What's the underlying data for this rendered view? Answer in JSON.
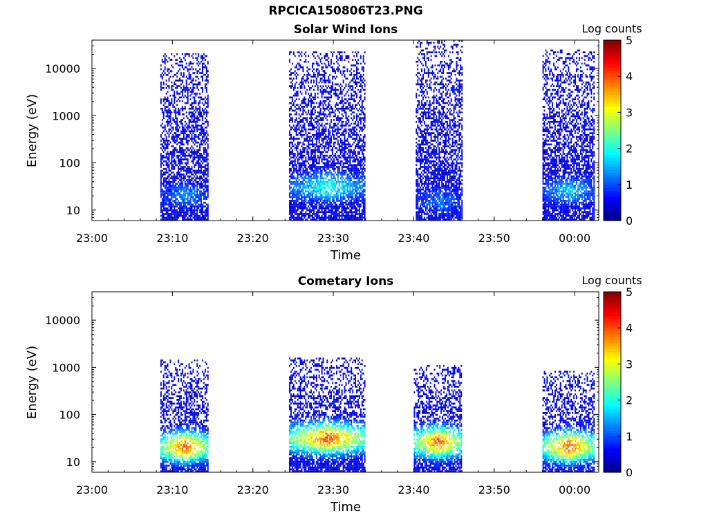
{
  "figure": {
    "title": "RPCICA150806T23.PNG"
  },
  "colorbar": {
    "label": "Log counts",
    "min": 0,
    "max": 5,
    "ticks": [
      "0",
      "1",
      "2",
      "3",
      "4",
      "5"
    ],
    "colormap": "jet",
    "colors": [
      "#00007f",
      "#0000ff",
      "#007fff",
      "#00ffff",
      "#7fff7f",
      "#ffff00",
      "#ff7f00",
      "#ff0000",
      "#7f0000"
    ]
  },
  "chart_data": [
    {
      "type": "heatmap",
      "title": "Solar Wind Ions",
      "xlabel": "Time",
      "ylabel": "Energy (eV)",
      "yscale": "log",
      "ylim": [
        6,
        40000
      ],
      "xlim": [
        "23:00",
        "00:03"
      ],
      "xticks": [
        "23:00",
        "23:10",
        "23:20",
        "23:30",
        "23:40",
        "23:50",
        "00:00"
      ],
      "yticks": [
        "10",
        "100",
        "1000",
        "10000"
      ],
      "value_label": "Log counts",
      "events": [
        {
          "start": "23:08:30",
          "end": "23:14:30",
          "energy_min": 6,
          "energy_max": 20000,
          "peak_log_counts": 1.3,
          "peak_energy": 20
        },
        {
          "start": "23:24:30",
          "end": "23:34:00",
          "energy_min": 6,
          "energy_max": 22000,
          "peak_log_counts": 2.0,
          "peak_energy": 30
        },
        {
          "start": "23:40:15",
          "end": "23:46:00",
          "energy_min": 6,
          "energy_max": 40000,
          "peak_log_counts": 1.2,
          "peak_energy": 15
        },
        {
          "start": "23:56:00",
          "end": "00:02:30",
          "energy_min": 6,
          "energy_max": 25000,
          "peak_log_counts": 1.6,
          "peak_energy": 25
        }
      ]
    },
    {
      "type": "heatmap",
      "title": "Cometary Ions",
      "xlabel": "Time",
      "ylabel": "Energy (eV)",
      "yscale": "log",
      "ylim": [
        6,
        40000
      ],
      "xlim": [
        "23:00",
        "00:03"
      ],
      "xticks": [
        "23:00",
        "23:10",
        "23:20",
        "23:30",
        "23:40",
        "23:50",
        "00:00"
      ],
      "yticks": [
        "10",
        "100",
        "1000",
        "10000"
      ],
      "value_label": "Log counts",
      "events": [
        {
          "start": "23:08:30",
          "end": "23:14:30",
          "energy_min": 6,
          "energy_max": 1400,
          "peak_log_counts": 4.0,
          "peak_energy": 20
        },
        {
          "start": "23:24:30",
          "end": "23:34:00",
          "energy_min": 6,
          "energy_max": 1600,
          "peak_log_counts": 4.0,
          "peak_energy": 30
        },
        {
          "start": "23:40:00",
          "end": "23:46:00",
          "energy_min": 6,
          "energy_max": 1100,
          "peak_log_counts": 4.0,
          "peak_energy": 25
        },
        {
          "start": "23:56:00",
          "end": "00:02:30",
          "energy_min": 6,
          "energy_max": 800,
          "peak_log_counts": 4.0,
          "peak_energy": 20
        }
      ]
    }
  ]
}
